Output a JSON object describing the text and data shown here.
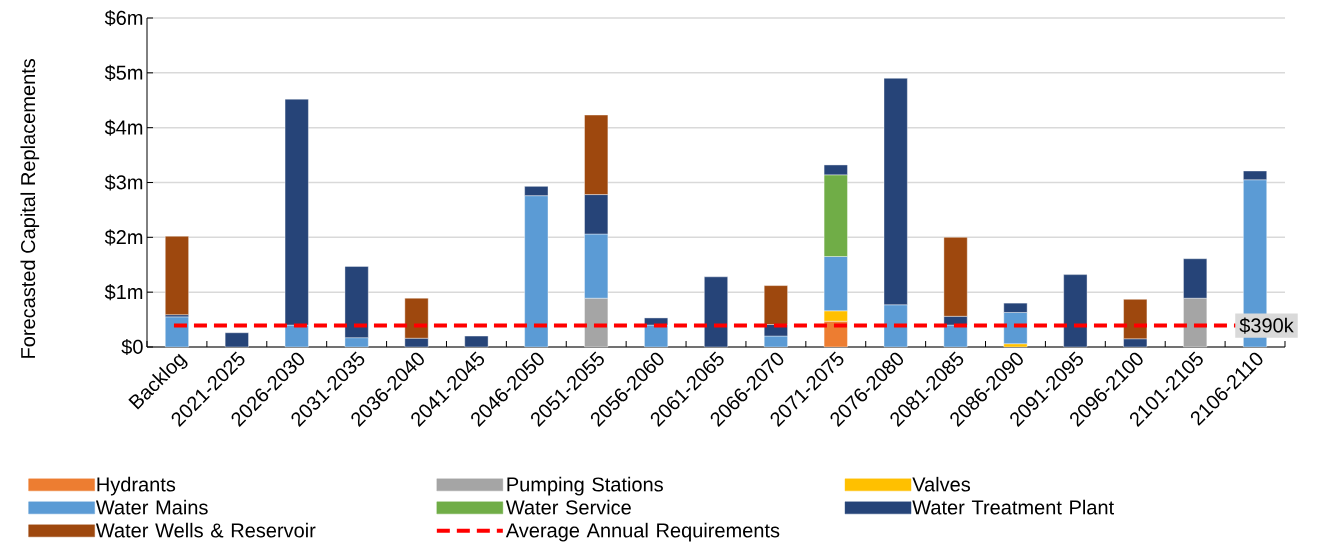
{
  "chart_data": {
    "type": "bar",
    "stacked": true,
    "ylabel": "Forecasted Capital Replacements",
    "categories": [
      "Backlog",
      "2021-2025",
      "2026-2030",
      "2031-2035",
      "2036-2040",
      "2041-2045",
      "2046-2050",
      "2051-2055",
      "2056-2060",
      "2061-2065",
      "2066-2070",
      "2071-2075",
      "2076-2080",
      "2081-2085",
      "2086-2090",
      "2091-2095",
      "2096-2100",
      "2101-2105",
      "2106-2110"
    ],
    "series": [
      {
        "name": "Hydrants",
        "color": "#ed7d31",
        "values": [
          null,
          null,
          null,
          null,
          null,
          null,
          null,
          null,
          null,
          null,
          null,
          0.47,
          null,
          null,
          null,
          null,
          null,
          null,
          null
        ]
      },
      {
        "name": "Pumping Stations",
        "color": "#a5a5a5",
        "values": [
          null,
          null,
          null,
          null,
          null,
          null,
          null,
          0.89,
          null,
          null,
          null,
          null,
          null,
          null,
          null,
          null,
          null,
          0.89,
          null
        ]
      },
      {
        "name": "Valves",
        "color": "#ffc000",
        "values": [
          null,
          null,
          null,
          null,
          null,
          null,
          null,
          null,
          null,
          null,
          null,
          0.19,
          null,
          null,
          0.06,
          null,
          null,
          null,
          null
        ]
      },
      {
        "name": "Water Mains",
        "color": "#5b9bd5",
        "values": [
          0.55,
          null,
          0.4,
          0.17,
          null,
          null,
          2.76,
          1.17,
          0.4,
          null,
          0.2,
          0.99,
          0.77,
          0.4,
          0.57,
          null,
          null,
          null,
          3.05
        ]
      },
      {
        "name": "Water Service",
        "color": "#70ad47",
        "values": [
          null,
          null,
          null,
          null,
          null,
          null,
          null,
          null,
          null,
          null,
          null,
          1.49,
          null,
          null,
          null,
          null,
          null,
          null,
          null
        ]
      },
      {
        "name": "Water Treatment Plant",
        "color": "#264478",
        "values": [
          0.04,
          0.26,
          4.12,
          1.3,
          0.16,
          0.2,
          0.17,
          0.72,
          0.13,
          1.28,
          0.21,
          0.18,
          4.13,
          0.16,
          0.17,
          1.32,
          0.15,
          0.72,
          0.16
        ]
      },
      {
        "name": "Water Wells & Reservoir",
        "color": "#9e480e",
        "values": [
          1.43,
          null,
          null,
          null,
          0.73,
          null,
          null,
          1.45,
          null,
          null,
          0.71,
          null,
          null,
          1.44,
          null,
          null,
          0.72,
          null,
          null
        ]
      }
    ],
    "ylim": [
      0,
      6
    ],
    "yticks": [
      {
        "value": 0,
        "label": "$0"
      },
      {
        "value": 1,
        "label": "$1m"
      },
      {
        "value": 2,
        "label": "$2m"
      },
      {
        "value": 3,
        "label": "$3m"
      },
      {
        "value": 4,
        "label": "$4m"
      },
      {
        "value": 5,
        "label": "$5m"
      },
      {
        "value": 6,
        "label": "$6m"
      }
    ],
    "grid": "y",
    "legend": "bottom",
    "ref_lines": [
      {
        "axis": "y",
        "value": 0.39,
        "label": "Average Annual Requirements",
        "color": "#ff0000",
        "line_style": "dashed"
      }
    ],
    "annotations": [
      {
        "text": "$390k",
        "x": "2106-2110",
        "y": 0.39
      }
    ]
  }
}
